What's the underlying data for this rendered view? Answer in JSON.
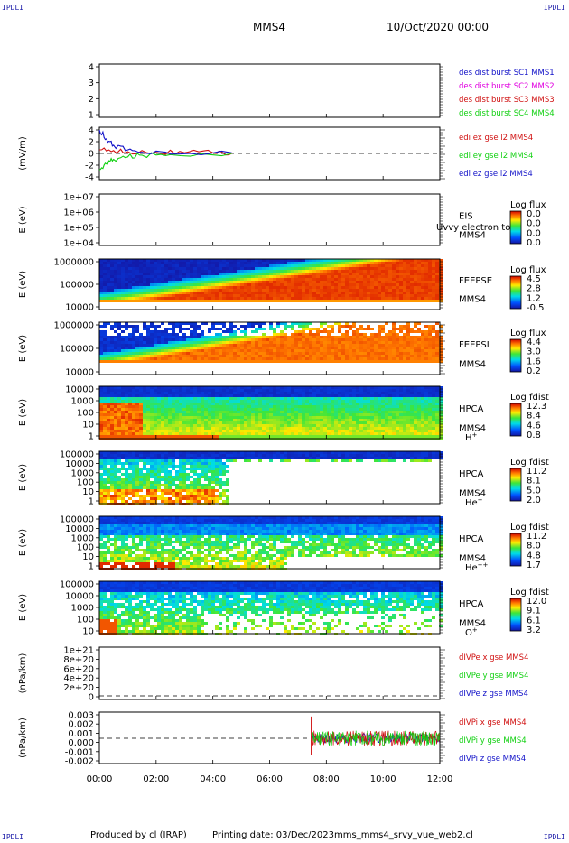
{
  "corners": {
    "tl": "IPDLI",
    "tr": "IPDLI",
    "bl": "IPDLI",
    "br": "IPDLI"
  },
  "header": {
    "title": "MMS4",
    "date": "10/Oct/2020 00:00"
  },
  "footer": {
    "producer": "Produced by cl (IRAP)",
    "printing": "Printing date: 03/Dec/2023",
    "file": "mms_mms4_srvy_vue_web2.cl"
  },
  "colors": {
    "red": "#d01010",
    "magenta": "#e000e0",
    "green": "#10d010",
    "blue": "#1010c8",
    "axis": "#000000"
  },
  "chart_data": {
    "type": "stacked time-series panels",
    "x_ticks": [
      "00:00",
      "02:00",
      "04:00",
      "06:00",
      "08:00",
      "10:00",
      "12:00"
    ],
    "x_range": [
      "00:00",
      "12:00"
    ],
    "panels": [
      {
        "type": "line",
        "ylabel": "",
        "yticks": [
          "4",
          "3",
          "2",
          "1"
        ],
        "ylim": [
          1,
          4
        ],
        "legend": [
          {
            "text": "des dist burst SC1 MMS1",
            "color": "#1010c8"
          },
          {
            "text": "des dist burst SC2 MMS2",
            "color": "#e000e0"
          },
          {
            "text": "des dist burst SC3 MMS3",
            "color": "#d01010"
          },
          {
            "text": "des dist burst SC4 MMS4",
            "color": "#10d010"
          }
        ]
      },
      {
        "type": "line",
        "ylabel": "(mV/m)",
        "yticks": [
          "4",
          "2",
          "0",
          "-2",
          "-4"
        ],
        "ylim": [
          -4,
          4
        ],
        "legend": [
          {
            "text": "edi ex gse l2 MMS4",
            "color": "#d01010"
          },
          {
            "text": "edi ey gse l2 MMS4",
            "color": "#10d010"
          },
          {
            "text": "edi ez gse l2 MMS4",
            "color": "#1010c8"
          }
        ],
        "series": [
          {
            "name": "edi ex gse l2 MMS4",
            "x": [
              "00:00",
              "00:30",
              "01:00",
              "02:00",
              "03:00",
              "04:00",
              "04:40"
            ],
            "values": [
              0.6,
              0.5,
              0.3,
              0.2,
              0.1,
              0.1,
              0.0
            ]
          },
          {
            "name": "edi ey gse l2 MMS4",
            "x": [
              "00:00",
              "00:15",
              "00:30",
              "01:00",
              "01:30",
              "02:30",
              "04:40"
            ],
            "values": [
              -2.8,
              -1.8,
              -1.0,
              -0.6,
              -0.3,
              -0.2,
              0.0
            ]
          },
          {
            "name": "edi ez gse l2 MMS4",
            "x": [
              "00:00",
              "00:15",
              "00:30",
              "01:00",
              "01:30",
              "02:30",
              "04:40"
            ],
            "values": [
              4.0,
              2.5,
              1.4,
              0.6,
              0.2,
              -0.1,
              0.1
            ]
          }
        ]
      },
      {
        "type": "heatmap",
        "ylabel": "E (eV)",
        "yticks": [
          "1e+07",
          "1e+06",
          "1e+05",
          "1e+04"
        ],
        "labels": [
          "EIS",
          "MMS4"
        ],
        "overlay": "Uvvy electron to",
        "cb_title": "Log flux",
        "cb_ticks": [
          "0.0",
          "0.0",
          "0.0",
          "0.0"
        ]
      },
      {
        "type": "heatmap",
        "ylabel": "E (eV)",
        "yticks": [
          "1000000",
          "100000",
          "10000"
        ],
        "labels": [
          "FEEPSE",
          "MMS4"
        ],
        "cb_title": "Log flux",
        "cb_ticks": [
          "4.5",
          "2.8",
          "1.2",
          "-0.5"
        ]
      },
      {
        "type": "heatmap",
        "ylabel": "E (eV)",
        "yticks": [
          "1000000",
          "100000",
          "10000"
        ],
        "labels": [
          "FEEPSI",
          "MMS4"
        ],
        "cb_title": "Log flux",
        "cb_ticks": [
          "4.4",
          "3.0",
          "1.6",
          "0.2"
        ]
      },
      {
        "type": "heatmap",
        "ylabel": "E (eV)",
        "yticks": [
          "10000",
          "1000",
          "100",
          "10",
          "1"
        ],
        "labels": [
          "HPCA",
          "MMS4"
        ],
        "species": "H",
        "species_sup": "+",
        "cb_title": "Log fdist",
        "cb_ticks": [
          "12.3",
          "8.4",
          "4.6",
          "0.8"
        ]
      },
      {
        "type": "heatmap",
        "ylabel": "E (eV)",
        "yticks": [
          "100000",
          "10000",
          "1000",
          "100",
          "10",
          "1"
        ],
        "labels": [
          "HPCA",
          "MMS4"
        ],
        "species": "He",
        "species_sup": "+",
        "cb_title": "Log fdist",
        "cb_ticks": [
          "11.2",
          "8.1",
          "5.0",
          "2.0"
        ]
      },
      {
        "type": "heatmap",
        "ylabel": "E (eV)",
        "yticks": [
          "100000",
          "10000",
          "1000",
          "100",
          "10",
          "1"
        ],
        "labels": [
          "HPCA",
          "MMS4"
        ],
        "species": "He",
        "species_sup": "++",
        "cb_title": "Log fdist",
        "cb_ticks": [
          "11.2",
          "8.0",
          "4.8",
          "1.7"
        ]
      },
      {
        "type": "heatmap",
        "ylabel": "E (eV)",
        "yticks": [
          "100000",
          "10000",
          "1000",
          "100",
          "10"
        ],
        "labels": [
          "HPCA",
          "MMS4"
        ],
        "species": "O",
        "species_sup": "+",
        "cb_title": "Log fdist",
        "cb_ticks": [
          "12.0",
          "9.1",
          "6.1",
          "3.2"
        ]
      },
      {
        "type": "line",
        "ylabel": "(nPa/km)",
        "yticks": [
          "1e+21",
          "8e+20",
          "6e+20",
          "4e+20",
          "2e+20",
          "0"
        ],
        "ylim": [
          0,
          1e+21
        ],
        "legend": [
          {
            "text": "dIVPe x gse MMS4",
            "color": "#d01010"
          },
          {
            "text": "dIVPe y gse MMS4",
            "color": "#10d010"
          },
          {
            "text": "dIVPe z gse MMS4",
            "color": "#1010c8"
          }
        ]
      },
      {
        "type": "line",
        "ylabel": "(nPa/km)",
        "yticks": [
          "0.003",
          "0.002",
          "0.001",
          "0.000",
          "-0.001",
          "-0.002"
        ],
        "ylim": [
          -0.0025,
          0.003
        ],
        "legend": [
          {
            "text": "dIVPi x gse MMS4",
            "color": "#d01010"
          },
          {
            "text": "dIVPi y gse MMS4",
            "color": "#10d010"
          },
          {
            "text": "dIVPi z gse MMS4",
            "color": "#1010c8"
          }
        ]
      }
    ]
  }
}
